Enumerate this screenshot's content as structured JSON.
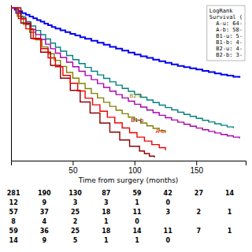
{
  "chart_data": {
    "type": "line",
    "line_style": "step",
    "xlabel": "Time from surgery (months)",
    "xlim": [
      0,
      190
    ],
    "ylim": [
      0,
      1.02
    ],
    "xticks": [
      50,
      100,
      150
    ],
    "yticks": [],
    "tick_labels": "x",
    "series": [
      {
        "color": "#0000EE",
        "x": [
          0,
          3,
          6,
          9,
          12,
          15,
          18,
          21,
          24,
          27,
          30,
          33,
          36,
          40,
          44,
          48,
          52,
          56,
          60,
          65,
          70,
          75,
          80,
          85,
          90,
          95,
          100,
          105,
          110,
          115,
          120,
          125,
          130,
          135,
          140,
          145,
          150,
          155,
          160,
          165,
          170,
          175,
          180,
          185
        ],
        "values": [
          1.0,
          0.988,
          0.977,
          0.965,
          0.954,
          0.943,
          0.931,
          0.92,
          0.909,
          0.897,
          0.886,
          0.875,
          0.864,
          0.852,
          0.841,
          0.83,
          0.819,
          0.808,
          0.797,
          0.784,
          0.771,
          0.758,
          0.745,
          0.733,
          0.72,
          0.707,
          0.694,
          0.683,
          0.672,
          0.661,
          0.65,
          0.64,
          0.63,
          0.62,
          0.612,
          0.604,
          0.596,
          0.587,
          0.579,
          0.571,
          0.563,
          0.556,
          0.549,
          0.542
        ]
      },
      {
        "color": "#008080",
        "x": [
          0,
          4,
          8,
          12,
          16,
          20,
          24,
          28,
          32,
          36,
          40,
          45,
          50,
          55,
          60,
          65,
          70,
          75,
          80,
          85,
          90,
          95,
          100,
          105,
          110,
          115,
          120,
          125,
          130,
          135,
          140,
          145,
          150,
          155,
          160,
          165,
          170,
          175,
          180
        ],
        "values": [
          1.0,
          0.97,
          0.94,
          0.91,
          0.881,
          0.852,
          0.824,
          0.796,
          0.769,
          0.742,
          0.716,
          0.688,
          0.661,
          0.635,
          0.61,
          0.585,
          0.561,
          0.538,
          0.516,
          0.494,
          0.473,
          0.453,
          0.434,
          0.415,
          0.397,
          0.38,
          0.363,
          0.347,
          0.332,
          0.317,
          0.303,
          0.29,
          0.277,
          0.264,
          0.253,
          0.241,
          0.231,
          0.221,
          0.212
        ]
      },
      {
        "color": "#808000",
        "x": [
          0,
          5,
          10,
          15,
          20,
          25,
          30,
          35,
          40,
          45,
          50,
          55,
          60,
          65,
          70,
          75,
          80,
          85,
          90,
          95,
          100,
          105,
          110,
          115,
          120,
          125
        ],
        "values": [
          1.0,
          0.945,
          0.891,
          0.84,
          0.791,
          0.744,
          0.699,
          0.656,
          0.616,
          0.577,
          0.54,
          0.505,
          0.471,
          0.44,
          0.41,
          0.382,
          0.355,
          0.33,
          0.307,
          0.285,
          0.265,
          0.246,
          0.228,
          0.211,
          0.196,
          0.182
        ]
      },
      {
        "color": "#AA00AA",
        "x": [
          0,
          4,
          8,
          12,
          16,
          20,
          24,
          28,
          32,
          36,
          40,
          45,
          50,
          55,
          60,
          65,
          70,
          75,
          80,
          85,
          90,
          95,
          100,
          105,
          110,
          115,
          120,
          125,
          130,
          135,
          140,
          145,
          150,
          155,
          160,
          165,
          170,
          175,
          180,
          185
        ],
        "values": [
          1.0,
          0.963,
          0.927,
          0.892,
          0.858,
          0.825,
          0.793,
          0.762,
          0.732,
          0.703,
          0.675,
          0.644,
          0.614,
          0.585,
          0.557,
          0.53,
          0.504,
          0.479,
          0.455,
          0.432,
          0.41,
          0.389,
          0.369,
          0.35,
          0.331,
          0.314,
          0.297,
          0.281,
          0.266,
          0.252,
          0.238,
          0.225,
          0.213,
          0.202,
          0.191,
          0.181,
          0.171,
          0.162,
          0.154,
          0.146
        ]
      },
      {
        "color": "#8B0000",
        "x": [
          0,
          8,
          16,
          24,
          32,
          40,
          48,
          56,
          64,
          72,
          80,
          88,
          96,
          104,
          108,
          112,
          116
        ],
        "values": [
          1.0,
          0.9,
          0.8,
          0.71,
          0.623,
          0.54,
          0.46,
          0.384,
          0.312,
          0.246,
          0.187,
          0.135,
          0.094,
          0.063,
          0.046,
          0.03,
          0.02
        ]
      },
      {
        "color": "#EE0000",
        "x": [
          0,
          6,
          12,
          18,
          24,
          30,
          36,
          42,
          48,
          54,
          60,
          66,
          72,
          78,
          84,
          90,
          96,
          102,
          108,
          114,
          120,
          125
        ],
        "values": [
          1.0,
          0.93,
          0.862,
          0.796,
          0.733,
          0.672,
          0.614,
          0.558,
          0.506,
          0.456,
          0.409,
          0.365,
          0.323,
          0.284,
          0.247,
          0.214,
          0.183,
          0.154,
          0.128,
          0.105,
          0.085,
          0.068
        ]
      }
    ],
    "annotations": [
      {
        "text": "B2-b",
        "x": 96,
        "y": 0.42,
        "color": "#808000"
      },
      {
        "text": "B1-b",
        "x": 97,
        "y": 0.26,
        "color": "#8B0000"
      },
      {
        "text": "A-b",
        "x": 117,
        "y": 0.19,
        "color": "#EE0000"
      }
    ],
    "text_box": "LogRank\nSurvival (\n  A-u: 64-\n  A-b: 58-\n  B1-u: 5-\n  B1-b: 4-\n  B2-u: 4-\n  B2-b: 3-",
    "at_risk_x": [
      2,
      27,
      52,
      77,
      102,
      127,
      152,
      177
    ],
    "at_risk_rows": [
      [
        281,
        190,
        130,
        87,
        59,
        42,
        27,
        14
      ],
      [
        12,
        9,
        3,
        3,
        1,
        0,
        null,
        null
      ],
      [
        57,
        37,
        25,
        18,
        11,
        3,
        2,
        1
      ],
      [
        8,
        4,
        2,
        1,
        0,
        null,
        null,
        null
      ],
      [
        59,
        36,
        25,
        18,
        14,
        11,
        7,
        1
      ],
      [
        14,
        9,
        5,
        1,
        1,
        0,
        null,
        null
      ]
    ]
  }
}
